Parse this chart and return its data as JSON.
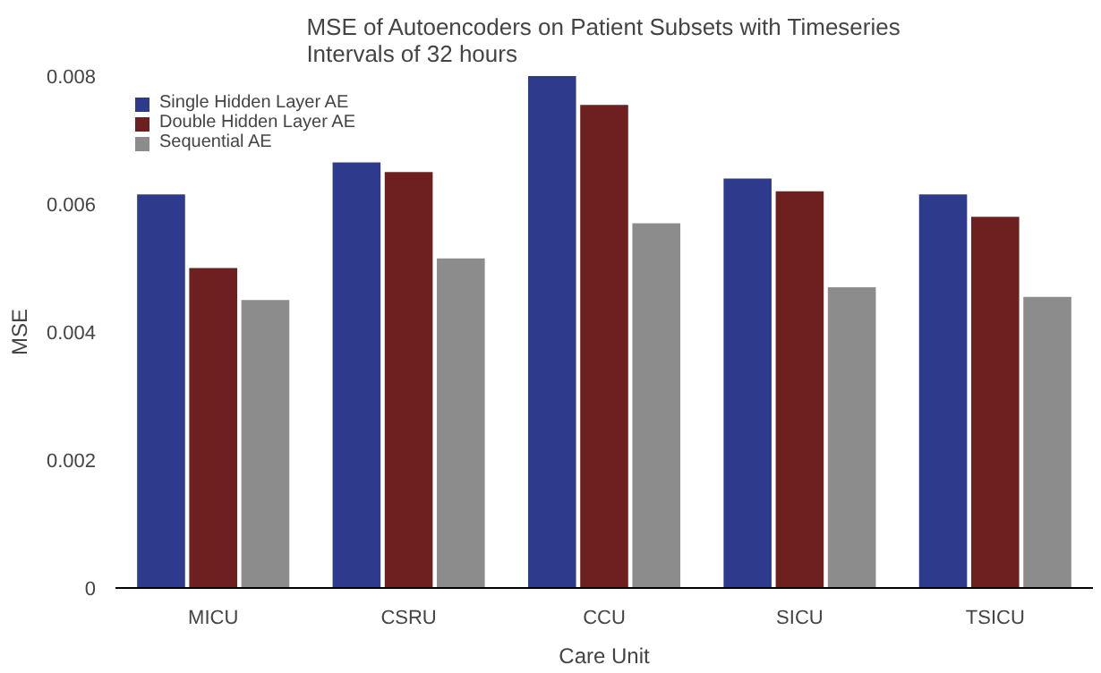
{
  "chart_data": {
    "type": "bar",
    "title": "MSE of Autoencoders on Patient Subsets with Timeseries\nIntervals of 32 hours",
    "xlabel": "Care Unit",
    "ylabel": "MSE",
    "categories": [
      "MICU",
      "CSRU",
      "CCU",
      "SICU",
      "TSICU"
    ],
    "series": [
      {
        "name": "Single Hidden Layer AE",
        "color": "#2e3a8c",
        "values": [
          0.00615,
          0.00665,
          0.008,
          0.0064,
          0.00615
        ]
      },
      {
        "name": "Double Hidden Layer AE",
        "color": "#6e1f1f",
        "values": [
          0.005,
          0.0065,
          0.00755,
          0.0062,
          0.0058
        ]
      },
      {
        "name": "Sequential AE",
        "color": "#8c8c8c",
        "values": [
          0.0045,
          0.00515,
          0.0057,
          0.0047,
          0.00455
        ]
      }
    ],
    "ylim": [
      0,
      0.008
    ],
    "yticks": [
      0,
      0.002,
      0.004,
      0.006,
      0.008
    ],
    "grid": false,
    "legend": "top left"
  }
}
